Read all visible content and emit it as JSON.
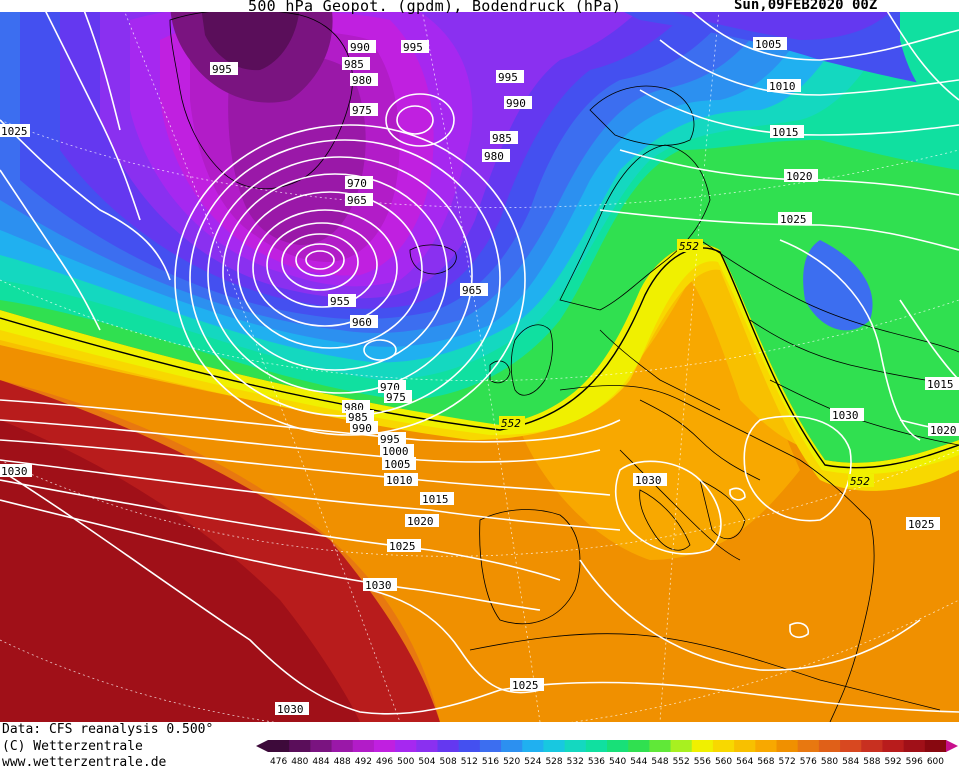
{
  "header": {
    "title": "500 hPa Geopot. (gpdm), Bodendruck (hPa)",
    "date": "Sun,09FEB2020 00Z"
  },
  "footer": {
    "data_source": "Data: CFS reanalysis 0.500°",
    "copyright": "(C) Wetterzentrale",
    "website": "www.wetterzentrale.de"
  },
  "legend": {
    "values": [
      "476",
      "480",
      "484",
      "488",
      "492",
      "496",
      "500",
      "504",
      "508",
      "512",
      "516",
      "520",
      "524",
      "528",
      "532",
      "536",
      "540",
      "544",
      "548",
      "552",
      "556",
      "560",
      "564",
      "568",
      "572",
      "576",
      "580",
      "584",
      "588",
      "592",
      "596",
      "600"
    ],
    "colors": [
      "#3d0a3a",
      "#5a0e5a",
      "#7a1480",
      "#9a18a8",
      "#b21cc8",
      "#c020e0",
      "#a628f0",
      "#8a30f0",
      "#6438f0",
      "#4450f0",
      "#3c6ef0",
      "#2c90f0",
      "#20b0f0",
      "#18c8e0",
      "#14d8c0",
      "#10e0a0",
      "#18e078",
      "#30e050",
      "#60e838",
      "#a8f020",
      "#f0f000",
      "#f8d800",
      "#f8c000",
      "#f8a800",
      "#f09000",
      "#e87810",
      "#e06018",
      "#d84820",
      "#c83020",
      "#b81c1c",
      "#a01018",
      "#880810"
    ]
  },
  "contour_labels": [
    "990",
    "995",
    "985",
    "980",
    "975",
    "995",
    "990",
    "985",
    "980",
    "970",
    "965",
    "995",
    "1025",
    "955",
    "960",
    "965",
    "970",
    "975",
    "980",
    "985",
    "990",
    "995",
    "1000",
    "1005",
    "1010",
    "1015",
    "1020",
    "1025",
    "1030",
    "1030",
    "1025",
    "1030",
    "1005",
    "1010",
    "1015",
    "1020",
    "1025",
    "1030",
    "1015",
    "1020",
    "1030",
    "1025"
  ],
  "z500_labels": [
    "552",
    "552",
    "552"
  ]
}
